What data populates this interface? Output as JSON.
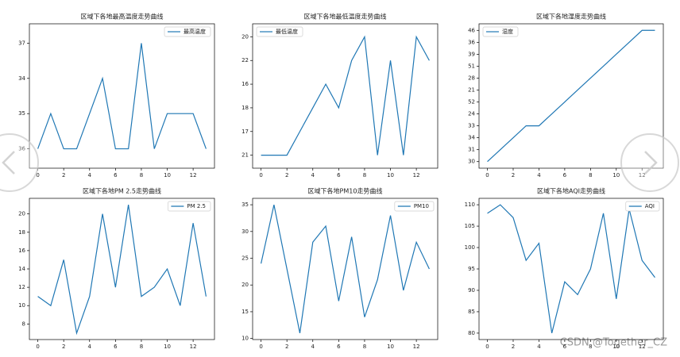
{
  "chart_data": [
    {
      "type": "line",
      "title": "区域下各地最高温度走势曲线",
      "x": [
        0,
        1,
        2,
        3,
        4,
        5,
        6,
        7,
        8,
        9,
        10,
        11,
        12,
        13
      ],
      "xlim": [
        -0.65,
        13.65
      ],
      "xticks": [
        0,
        2,
        4,
        6,
        8,
        10,
        12
      ],
      "ycategories": [
        "36",
        "35",
        "34",
        "37"
      ],
      "legend": "upper right",
      "series": [
        {
          "name": "最高温度",
          "color": "#1f77b4",
          "values": [
            "36",
            "35",
            "36",
            "36",
            "35",
            "34",
            "36",
            "36",
            "37",
            "36",
            "35",
            "35",
            "35",
            "36"
          ]
        }
      ]
    },
    {
      "type": "line",
      "title": "区域下各地最低温度走势曲线",
      "x": [
        0,
        1,
        2,
        3,
        4,
        5,
        6,
        7,
        8,
        9,
        10,
        11,
        12,
        13
      ],
      "xlim": [
        -0.65,
        13.65
      ],
      "xticks": [
        0,
        2,
        4,
        6,
        8,
        10,
        12
      ],
      "ycategories": [
        "21",
        "17",
        "18",
        "16",
        "22",
        "20"
      ],
      "legend": "upper left",
      "series": [
        {
          "name": "最低温度",
          "color": "#1f77b4",
          "values": [
            "21",
            "21",
            "21",
            "17",
            "18",
            "16",
            "18",
            "22",
            "20",
            "21",
            "22",
            "21",
            "20",
            "22"
          ]
        }
      ]
    },
    {
      "type": "line",
      "title": "区域下各地湿度走势曲线",
      "x": [
        0,
        1,
        2,
        3,
        4,
        5,
        6,
        7,
        8,
        9,
        10,
        11,
        12,
        13
      ],
      "xlim": [
        -0.65,
        13.65
      ],
      "xticks": [
        0,
        2,
        4,
        6,
        8,
        10,
        12
      ],
      "ycategories": [
        "30",
        "31",
        "34",
        "33",
        "24",
        "52",
        "21",
        "28",
        "51",
        "39",
        "36",
        "46"
      ],
      "legend": "upper left",
      "series": [
        {
          "name": "湿度",
          "color": "#1f77b4",
          "values": [
            "30",
            "31",
            "34",
            "33",
            "33",
            "24",
            "52",
            "21",
            "28",
            "51",
            "39",
            "36",
            "46",
            "46"
          ]
        }
      ]
    },
    {
      "type": "line",
      "title": "区域下各地PM 2.5走势曲线",
      "x": [
        0,
        1,
        2,
        3,
        4,
        5,
        6,
        7,
        8,
        9,
        10,
        11,
        12,
        13
      ],
      "xlim": [
        -0.65,
        13.65
      ],
      "xticks": [
        0,
        2,
        4,
        6,
        8,
        10,
        12
      ],
      "ylim": [
        6.3,
        21.7
      ],
      "yticks": [
        8,
        10,
        12,
        14,
        16,
        18,
        20
      ],
      "legend": "upper right",
      "series": [
        {
          "name": "PM 2.5",
          "color": "#1f77b4",
          "values": [
            11,
            10,
            15,
            7,
            11,
            20,
            12,
            21,
            11,
            12,
            14,
            10,
            19,
            11
          ]
        }
      ]
    },
    {
      "type": "line",
      "title": "区域下各地PM10走势曲线",
      "x": [
        0,
        1,
        2,
        3,
        4,
        5,
        6,
        7,
        8,
        9,
        10,
        11,
        12,
        13
      ],
      "xlim": [
        -0.65,
        13.65
      ],
      "xticks": [
        0,
        2,
        4,
        6,
        8,
        10,
        12
      ],
      "ylim": [
        9.8,
        36.2
      ],
      "yticks": [
        10,
        15,
        20,
        25,
        30,
        35
      ],
      "legend": "upper right",
      "series": [
        {
          "name": "PM10",
          "color": "#1f77b4",
          "values": [
            24,
            35,
            23,
            11,
            28,
            31,
            17,
            29,
            14,
            21,
            33,
            19,
            28,
            23
          ]
        }
      ]
    },
    {
      "type": "line",
      "title": "区域下各地AQI走势曲线",
      "x": [
        0,
        1,
        2,
        3,
        4,
        5,
        6,
        7,
        8,
        9,
        10,
        11,
        12,
        13
      ],
      "xlim": [
        -0.65,
        13.65
      ],
      "xticks": [
        0,
        2,
        4,
        6,
        8,
        10,
        12
      ],
      "ylim": [
        78.5,
        111.5
      ],
      "yticks": [
        80,
        85,
        90,
        95,
        100,
        105,
        110
      ],
      "legend": "upper right",
      "series": [
        {
          "name": "AQI",
          "color": "#1f77b4",
          "values": [
            108,
            110,
            107,
            97,
            101,
            80,
            92,
            89,
            95,
            108,
            88,
            109,
            97,
            93
          ]
        }
      ]
    }
  ],
  "watermark": "CSDN @Together_CZ"
}
